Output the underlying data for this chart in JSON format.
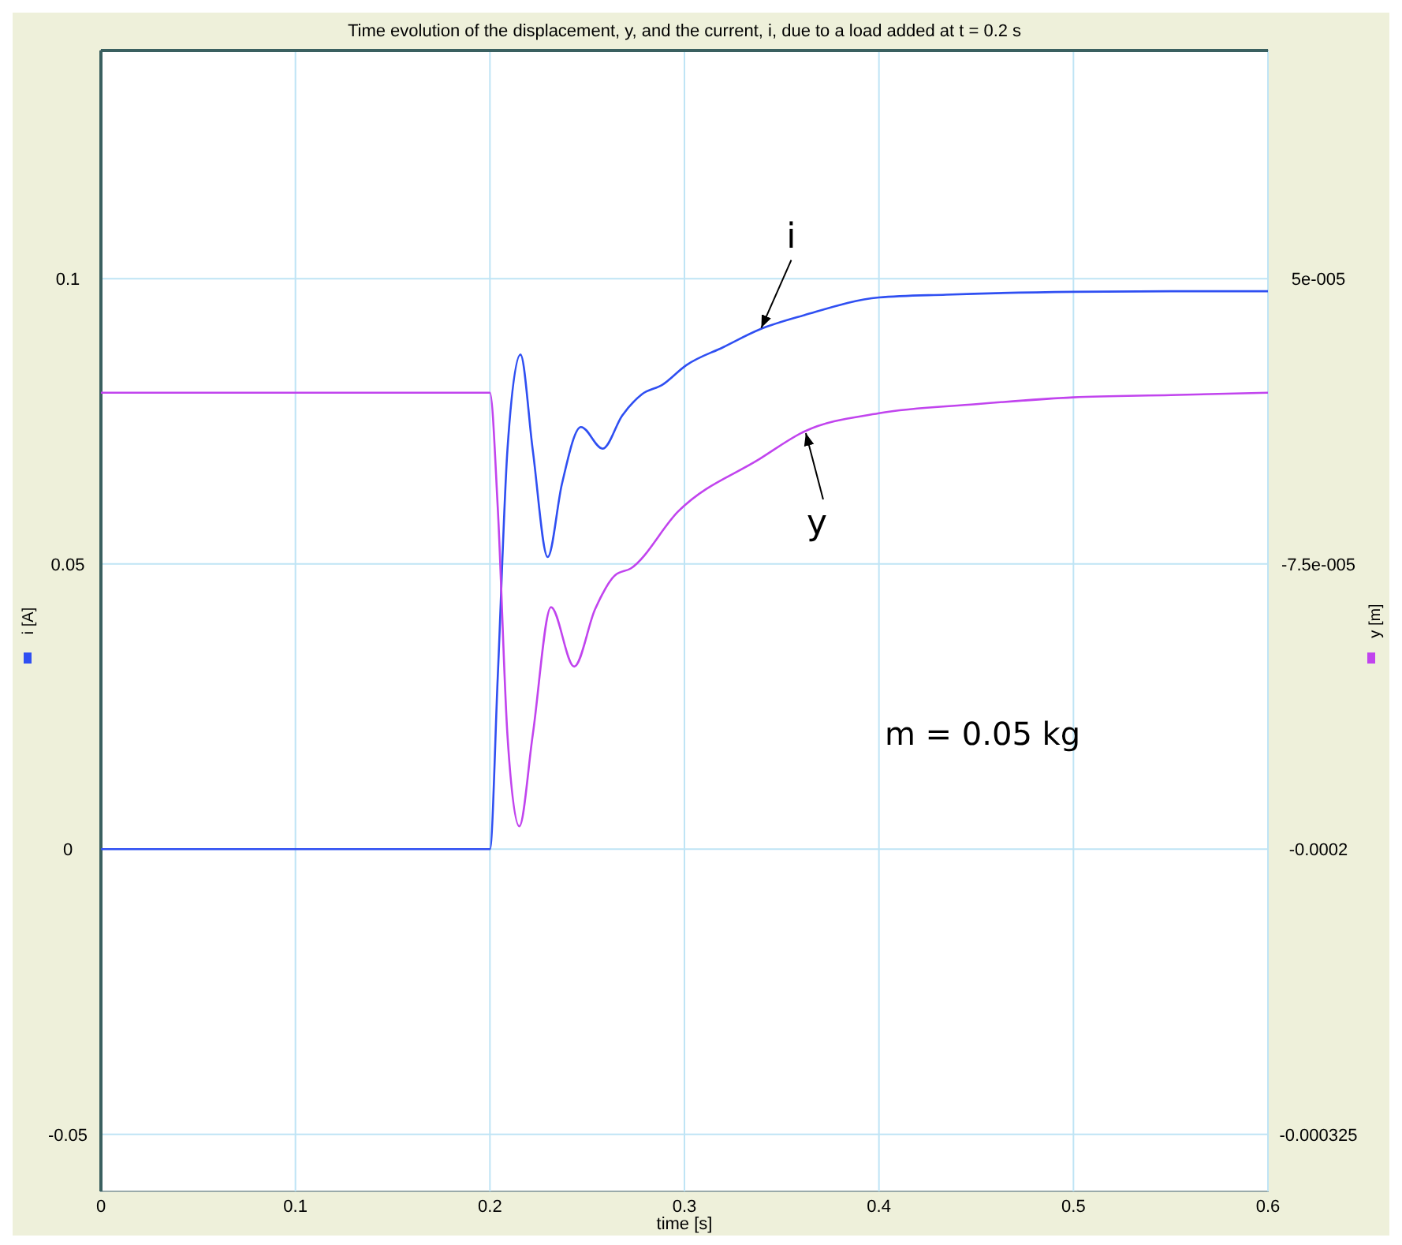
{
  "chart_data": {
    "type": "line",
    "title": "Time evolution of the displacement, y, and the current, i,  due to a load added at t = 0.2 s",
    "xlabel": "time [s]",
    "ylabel": "i [A]",
    "y2label": "y [m]",
    "xlim": [
      0,
      0.6
    ],
    "xticks": [
      0,
      0.1,
      0.2,
      0.3,
      0.4,
      0.5,
      0.6
    ],
    "ylim": [
      -0.06,
      0.14
    ],
    "yticks": [
      -0.05,
      0,
      0.05,
      0.1
    ],
    "y2lim": [
      -0.00035,
      0.00015
    ],
    "y2ticks": [
      {
        "value": -0.000325,
        "label": "-0.000325"
      },
      {
        "value": -0.0002,
        "label": "-0.0002"
      },
      {
        "value": -7.5e-05,
        "label": "-7.5e-005"
      },
      {
        "value": 5e-05,
        "label": "5e-005"
      }
    ],
    "grid": true,
    "line_style": "solid",
    "annotations": [
      "m = 0.05 kg"
    ],
    "series": [
      {
        "name": "i",
        "color": "#2f4ff2",
        "x": [
          0,
          0.2,
          0.204,
          0.209,
          0.2157,
          0.222,
          0.2297,
          0.237,
          0.2468,
          0.258,
          0.268,
          0.278,
          0.2887,
          0.3008,
          0.32,
          0.3387,
          0.3616,
          0.4,
          0.4346,
          0.5,
          0.55,
          0.6
        ],
        "values": [
          0,
          0,
          0.03,
          0.07,
          0.0867,
          0.07,
          0.0512,
          0.064,
          0.074,
          0.0702,
          0.076,
          0.0797,
          0.0814,
          0.0848,
          0.088,
          0.0911,
          0.0936,
          0.0967,
          0.0972,
          0.0977,
          0.0978,
          0.0978
        ]
      },
      {
        "name": "y",
        "color": "#c144ee",
        "axis": "y2",
        "x": [
          0,
          0.2,
          0.204,
          0.209,
          0.2151,
          0.222,
          0.2314,
          0.2433,
          0.254,
          0.2643,
          0.2724,
          0.2968,
          0.3387,
          0.3616,
          0.4,
          0.45,
          0.5,
          0.55,
          0.6
        ],
        "values": [
          0,
          0,
          -5e-05,
          -0.00015,
          -0.00019,
          -0.00015,
          -9.4e-05,
          -0.00012,
          -9.5e-05,
          -8e-05,
          -7.7e-05,
          -5.2e-05,
          -2.9e-05,
          -1.7e-05,
          -9e-06,
          -5e-06,
          -2e-06,
          -1e-06,
          0
        ]
      }
    ]
  }
}
